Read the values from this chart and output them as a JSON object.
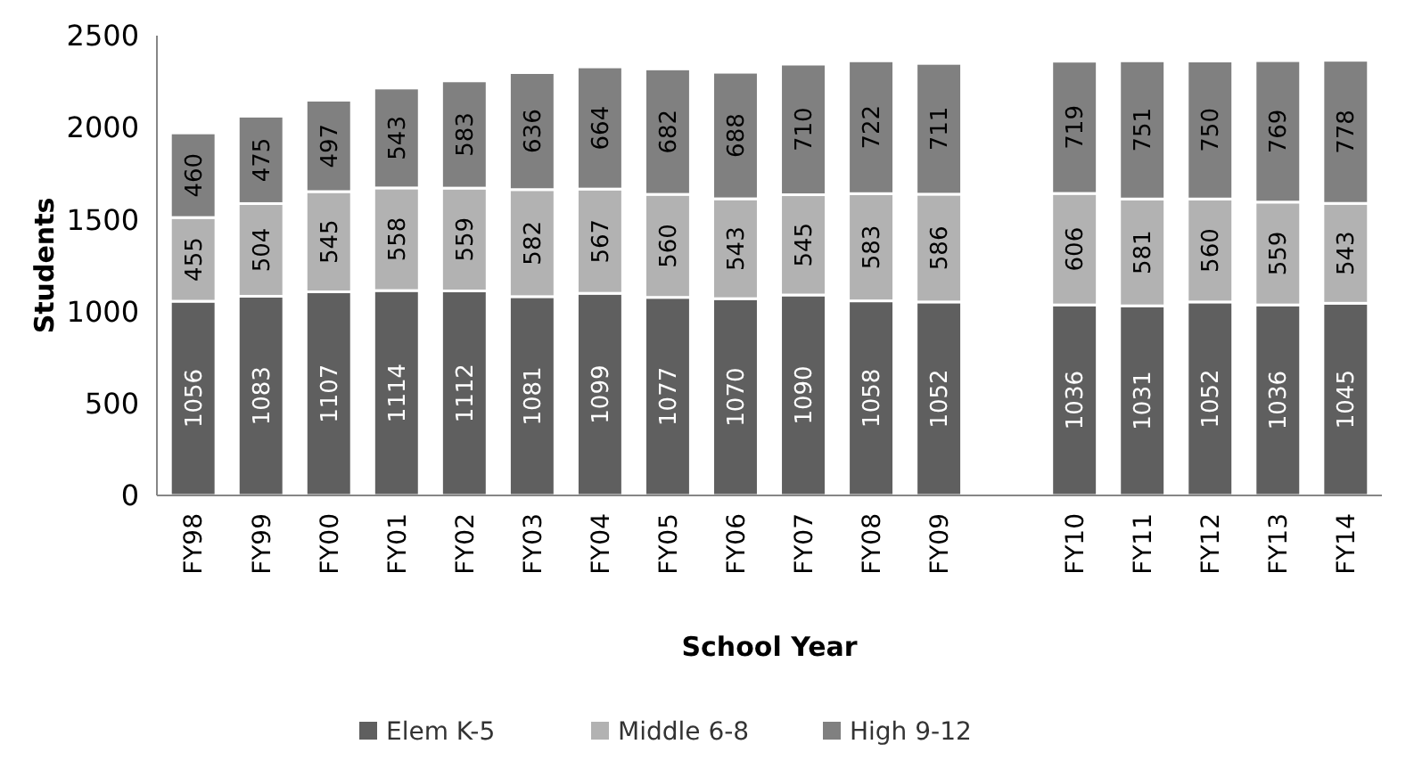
{
  "chart_data": {
    "type": "bar",
    "stacked": true,
    "xlabel": "School Year",
    "ylabel": "Students",
    "categories": [
      "FY98",
      "FY99",
      "FY00",
      "FY01",
      "FY02",
      "FY03",
      "FY04",
      "FY05",
      "FY06",
      "FY07",
      "FY08",
      "FY09",
      null,
      "FY10",
      "FY11",
      "FY12",
      "FY13",
      "FY14"
    ],
    "series": [
      {
        "name": "Elem K-5",
        "color": "#5f5f5f",
        "values": [
          1056,
          1083,
          1107,
          1114,
          1112,
          1081,
          1099,
          1077,
          1070,
          1090,
          1058,
          1052,
          null,
          1036,
          1031,
          1052,
          1036,
          1045
        ]
      },
      {
        "name": "Middle 6-8",
        "color": "#b2b2b2",
        "values": [
          455,
          504,
          545,
          558,
          559,
          582,
          567,
          560,
          543,
          545,
          583,
          586,
          null,
          606,
          581,
          560,
          559,
          543
        ]
      },
      {
        "name": "High 9-12",
        "color": "#808080",
        "values": [
          460,
          475,
          497,
          543,
          583,
          636,
          664,
          682,
          688,
          710,
          722,
          711,
          null,
          719,
          751,
          750,
          769,
          778
        ]
      }
    ],
    "ylim": [
      0,
      2500
    ],
    "yticks": [
      0,
      500,
      1000,
      1500,
      2000,
      2500
    ],
    "data_labels": true,
    "legend": "bottom"
  }
}
